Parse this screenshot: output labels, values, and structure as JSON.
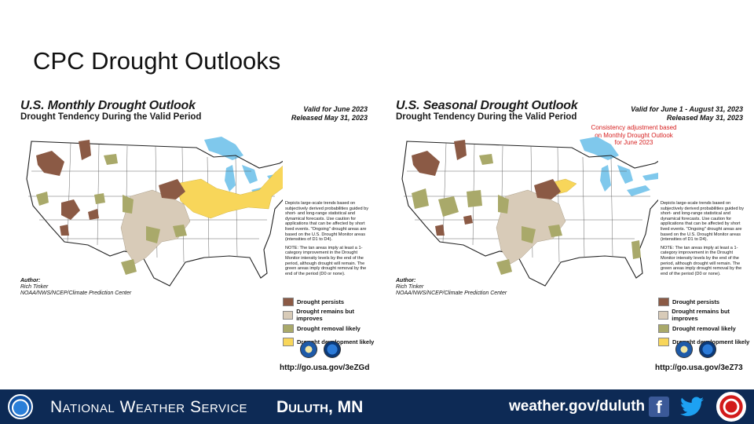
{
  "slide": {
    "title": "CPC Drought Outlooks"
  },
  "legend": {
    "items": [
      {
        "label": "Drought persists",
        "color": "#8b5a45"
      },
      {
        "label": "Drought remains but improves",
        "color": "#d8cbb8"
      },
      {
        "label": "Drought removal likely",
        "color": "#a9a96a"
      },
      {
        "label": "Drought development likely",
        "color": "#f8d65a"
      }
    ]
  },
  "maps": [
    {
      "title": "U.S. Monthly Drought Outlook",
      "subtitle": "Drought Tendency During the Valid Period",
      "valid": "Valid for June 2023",
      "released": "Released May 31, 2023",
      "consistency": "",
      "url": "http://go.usa.gov/3eZGd",
      "notes1": "Depicts large-scale trends based on subjectively derived probabilities guided by short- and long-range statistical and dynamical forecasts. Use caution for applications that can be affected by short lived events. \"Ongoing\" drought areas are based on the U.S. Drought Monitor areas (intensities of D1 to D4).",
      "notes2": "NOTE: The tan areas imply at least a 1-category improvement in the Drought Monitor intensity levels by the end of the period, although drought will remain. The green areas imply drought removal by the end of the period (D0 or none).",
      "author_label": "Author:",
      "author_name": "Rich Tinker",
      "author_org": "NOAA/NWS/NCEP/Climate Prediction Center"
    },
    {
      "title": "U.S. Seasonal Drought Outlook",
      "subtitle": "Drought Tendency During the Valid Period",
      "valid": "Valid for June 1 - August 31, 2023",
      "released": "Released May 31, 2023",
      "consistency": "Consistency adjustment based on Monthly Drought Outlook for June 2023",
      "url": "http://go.usa.gov/3eZ73",
      "notes1": "Depicts large-scale trends based on subjectively derived probabilities guided by short- and long-range statistical and dynamical forecasts. Use caution for applications that can be affected by short lived events. \"Ongoing\" drought areas are based on the U.S. Drought Monitor areas (intensities of D1 to D4).",
      "notes2": "NOTE: The tan areas imply at least a 1-category improvement in the Drought Monitor intensity levels by the end of the period, although drought will remain. The green areas imply drought removal by the end of the period (D0 or none).",
      "author_label": "Author:",
      "author_name": "Rich Tinker",
      "author_org": "NOAA/NWS/NCEP/Climate Prediction Center"
    }
  ],
  "footer": {
    "org": "National Weather Service",
    "office": "Duluth, MN",
    "website": "weather.gov/duluth",
    "facebook_icon": "facebook-icon",
    "twitter_icon": "twitter-icon"
  }
}
